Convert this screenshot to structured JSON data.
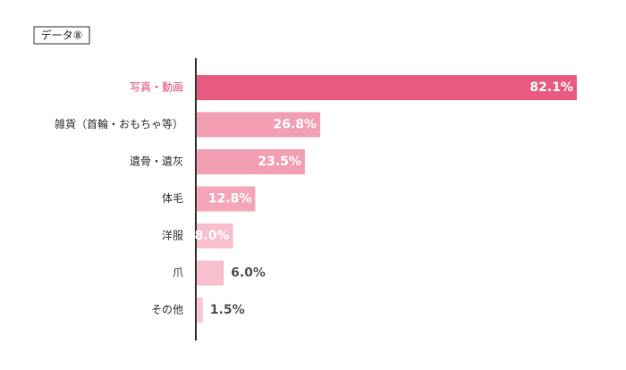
{
  "chart_data": {
    "type": "bar",
    "orientation": "horizontal",
    "title": "データ⑧",
    "categories": [
      "写真・動画",
      "雑貨（首輪・おもちゃ等）",
      "遺骨・遺灰",
      "体毛",
      "洋服",
      "爪",
      "その他"
    ],
    "values": [
      82.1,
      26.8,
      23.5,
      12.8,
      8.0,
      6.0,
      1.5
    ],
    "value_labels": [
      "82.1%",
      "26.8%",
      "23.5%",
      "12.8%",
      "8.0%",
      "6.0%",
      "1.5%"
    ],
    "colors": [
      "#e95a80",
      "#f39fb3",
      "#f39fb3",
      "#f4a6b8",
      "#f8bfcc",
      "#f8bfcc",
      "#f9c6d2"
    ],
    "category_colors": [
      "#e24d7c",
      "#333333",
      "#333333",
      "#333333",
      "#333333",
      "#333333",
      "#333333"
    ]
  }
}
